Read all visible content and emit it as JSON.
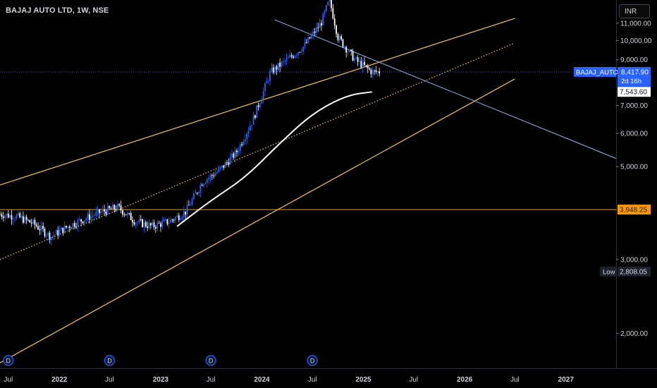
{
  "header": {
    "symbol_title": "BAJAJ AUTO LTD, 1W, NSE",
    "currency": "INR"
  },
  "colors": {
    "up": "#2962ff",
    "down": "#ffffff",
    "channel": "#f7c948",
    "trendline": "#8fb4e8",
    "ma": "#ffffff",
    "price_line": "#2962ff",
    "support": "#ff9800"
  },
  "icons": {
    "dividend_marker": "circle-letter-d"
  },
  "chart_data": {
    "type": "candlestick",
    "x_axis": {
      "labels": [
        "Jul",
        "2022",
        "Jul",
        "2023",
        "Jul",
        "2024",
        "Jul",
        "2025",
        "Jul",
        "2026",
        "Jul",
        "2027"
      ],
      "range": [
        "2021-06",
        "2027-07"
      ]
    },
    "y_axis": {
      "scale": "log",
      "tick_labels": [
        "11,000.00",
        "10,000.00",
        "9,000.00",
        "7,000.00",
        "6,000.00",
        "5,000.00",
        "3,000.00",
        "2,000.00"
      ],
      "ylim": [
        1650,
        12500
      ]
    },
    "series": [
      {
        "type": "candlestick",
        "x": [
          "2021-06",
          "2021-08",
          "2021-10",
          "2021-12",
          "2022-02",
          "2022-04",
          "2022-06",
          "2022-08",
          "2022-10",
          "2022-12",
          "2023-02",
          "2023-04",
          "2023-06",
          "2023-08",
          "2023-10",
          "2023-12",
          "2024-02",
          "2024-04",
          "2024-06",
          "2024-08",
          "2024-09",
          "2024-10",
          "2024-12",
          "2025-02"
        ],
        "close": [
          3850,
          3800,
          3650,
          3400,
          3600,
          3750,
          3900,
          4000,
          3700,
          3600,
          3700,
          3900,
          4600,
          4900,
          5400,
          6500,
          8400,
          9000,
          9700,
          11000,
          12500,
          10200,
          9000,
          8417.9
        ]
      },
      {
        "type": "line",
        "name": "moving-average",
        "x": [
          "2023-03",
          "2023-07",
          "2023-11",
          "2024-03",
          "2024-07",
          "2024-11",
          "2025-02"
        ],
        "y": [
          3600,
          4150,
          4700,
          5650,
          6700,
          7400,
          7543.6
        ]
      }
    ],
    "price_labels": [
      {
        "kind": "last-price",
        "symbol": "BAJAJ_AUTO",
        "value": "8,417.90",
        "countdown": "2d 16h"
      },
      {
        "kind": "moving-average",
        "value": "7,543.60"
      },
      {
        "kind": "horizontal-level",
        "value": "3,948.25"
      },
      {
        "kind": "low",
        "label": "Low",
        "value": "2,808.05"
      }
    ],
    "dividend_markers": {
      "label": "D",
      "x": [
        "2021-07",
        "2022-07",
        "2023-07",
        "2024-07"
      ]
    }
  }
}
